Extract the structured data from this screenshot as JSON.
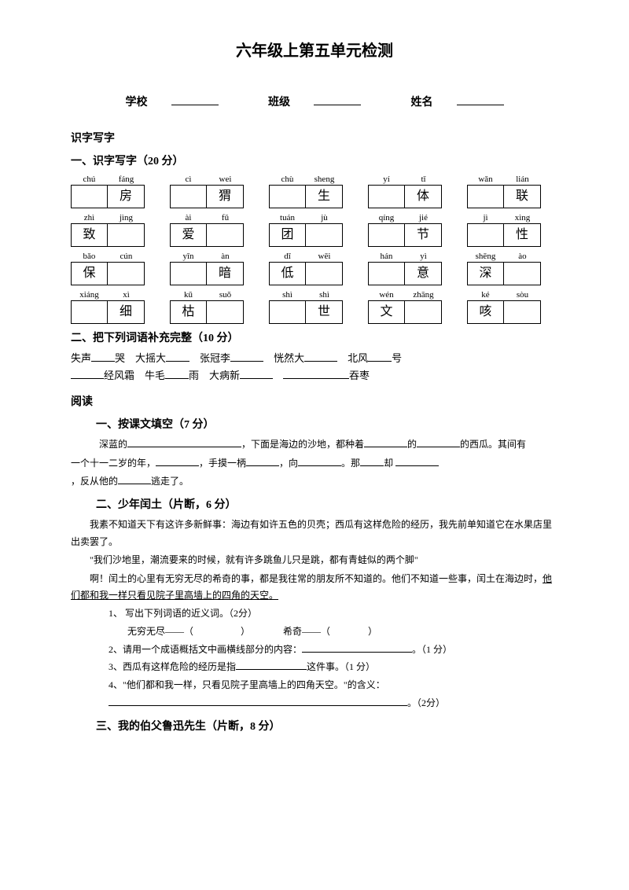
{
  "title": "六年级上第五单元检测",
  "info": {
    "school": "学校",
    "class": "班级",
    "name": "姓名"
  },
  "shizi": "识字写字",
  "sec1": {
    "title": "一、识字写字（20 分）"
  },
  "chars": [
    [
      {
        "p1": "chú",
        "p2": "fáng",
        "c1": "",
        "c2": "房"
      },
      {
        "p1": "cì",
        "p2": "wei",
        "c1": "",
        "c2": "猬"
      },
      {
        "p1": "chù",
        "p2": "sheng",
        "c1": "",
        "c2": "生"
      },
      {
        "p1": "yí",
        "p2": "tǐ",
        "c1": "",
        "c2": "体"
      },
      {
        "p1": "wǎn",
        "p2": "lián",
        "c1": "",
        "c2": "联"
      }
    ],
    [
      {
        "p1": "zhì",
        "p2": "jìng",
        "c1": "致",
        "c2": ""
      },
      {
        "p1": "ài",
        "p2": "fǔ",
        "c1": "爱",
        "c2": ""
      },
      {
        "p1": "tuán",
        "p2": "jù",
        "c1": "团",
        "c2": ""
      },
      {
        "p1": "qíng",
        "p2": "jié",
        "c1": "",
        "c2": "节"
      },
      {
        "p1": "jì",
        "p2": "xìng",
        "c1": "",
        "c2": "性"
      }
    ],
    [
      {
        "p1": "bǎo",
        "p2": "cún",
        "c1": "保",
        "c2": ""
      },
      {
        "p1": "yīn",
        "p2": "àn",
        "c1": "",
        "c2": "暗"
      },
      {
        "p1": "dī",
        "p2": "wēi",
        "c1": "低",
        "c2": ""
      },
      {
        "p1": "hán",
        "p2": "yì",
        "c1": "",
        "c2": "意"
      },
      {
        "p1": "shēng",
        "p2": "ào",
        "c1": "深",
        "c2": ""
      }
    ],
    [
      {
        "p1": "xiáng",
        "p2": "xì",
        "c1": "",
        "c2": "细"
      },
      {
        "p1": "kū",
        "p2": "suǒ",
        "c1": "枯",
        "c2": ""
      },
      {
        "p1": "shì",
        "p2": "shì",
        "c1": "",
        "c2": "世"
      },
      {
        "p1": "wén",
        "p2": "zhāng",
        "c1": "文",
        "c2": ""
      },
      {
        "p1": "ké",
        "p2": "sòu",
        "c1": "咳",
        "c2": ""
      }
    ]
  ],
  "sec2": {
    "title": "二、把下列词语补充完整（10 分）",
    "l1a": "失声",
    "l1b": "哭　大摇大",
    "l1c": "张冠李",
    "l1d": "恍然大",
    "l1e": "北风",
    "l1f": "号",
    "l2a": "经风霜　牛毛",
    "l2b": "雨　大病新",
    "l2c": "吞枣"
  },
  "reading": "阅读",
  "r1": {
    "title": "一、按课文填空（7 分）",
    "t1": "深蓝的",
    "t2": "，下面是海边的沙地，都种着",
    "t3": "的",
    "t4": "的西瓜。其间有",
    "t5": "一个十一二岁的年，",
    "t6": "，手摸一柄",
    "t7": "，向",
    "t8": "。那",
    "t9": "却",
    "t10": "，反从他的",
    "t11": "逃走了。"
  },
  "r2": {
    "title": "二、少年闰土（片断，6 分）",
    "p1": "我素不知道天下有这许多新鲜事：海边有如许五色的贝壳；西瓜有这样危险的经历，我先前单知道它在水果店里出卖罢了。",
    "p2": "\"我们沙地里，潮流要来的时候，就有许多跳鱼儿只是跳，都有青蛙似的两个脚\"",
    "p3a": "啊！闰土的心里有无穷无尽的希奇的事，都是我往常的朋友所不知道的。他们不知道一些事，闰土在海边时，",
    "p3b": "他们都和我一样只看见院子里高墙上的四角的天空。",
    "q1": "1、 写出下列词语的近义词。（2分）",
    "q1a": "无穷无尽——（　　　　　）　　　　希奇——（　　　　）",
    "q2": "2、请用一个成语概括文中画横线部分的内容：",
    "q2s": "。（1 分）",
    "q3": "3、西瓜有这样危险的经历是指",
    "q3s": "这件事。（1 分）",
    "q4": "4、\"他们都和我一样，只看见院子里高墙上的四角天空。\"的含义：",
    "q4s": "。（2分）"
  },
  "r3": {
    "title": "三、我的伯父鲁迅先生（片断，8 分）"
  }
}
